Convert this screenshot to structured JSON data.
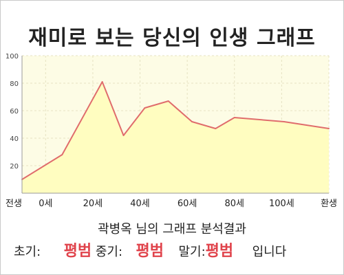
{
  "title": "재미로 보는 당신의 인생 그래프",
  "subtitle": "곽병옥 님의 그래프 분석결과",
  "result": {
    "early_label": "초기:",
    "early_value": "평범",
    "middle_label": "중기:",
    "middle_value": "평범",
    "late_label": "말기:",
    "late_value": "평범",
    "suffix": "입니다"
  },
  "colors": {
    "line": "#e06c6c",
    "fill": "#fffdc0",
    "plot_bg": "#fdfce5",
    "accent_text": "#e0434b"
  },
  "chart_data": {
    "type": "area",
    "title": "재미로 보는 당신의 인생 그래프",
    "xlabel": "",
    "ylabel": "",
    "x_ticks": [
      {
        "x": -10,
        "label": "전생"
      },
      {
        "x": 0,
        "label": "0세"
      },
      {
        "x": 20,
        "label": "20세"
      },
      {
        "x": 40,
        "label": "40세"
      },
      {
        "x": 60,
        "label": "60세"
      },
      {
        "x": 80,
        "label": "80세"
      },
      {
        "x": 100,
        "label": "100세"
      },
      {
        "x": 120,
        "label": "환생"
      }
    ],
    "y_ticks": [
      20,
      40,
      60,
      80,
      100
    ],
    "xlim": [
      -10,
      120
    ],
    "ylim": [
      0,
      100
    ],
    "grid": true,
    "series": [
      {
        "x": [
          -10,
          7,
          24,
          33,
          42,
          52,
          62,
          72,
          80,
          101,
          120
        ],
        "y": [
          10,
          28,
          81,
          42,
          62,
          67,
          52,
          47,
          55,
          52,
          47
        ]
      }
    ]
  }
}
